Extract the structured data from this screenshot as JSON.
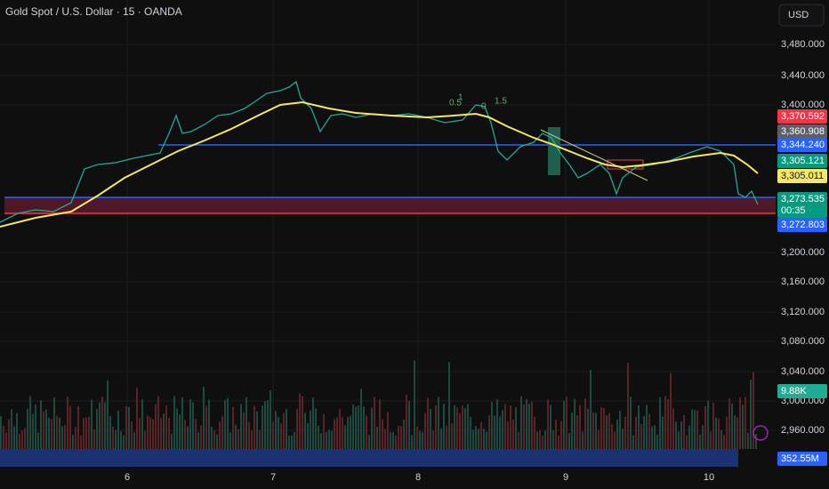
{
  "header": {
    "title": "Gold Spot / U.S. Dollar · 15 · OANDA",
    "currency": "USD"
  },
  "price_axis": [
    "3,480.000",
    "3,440.000",
    "3,400.000",
    "3,200.000",
    "3,160.000",
    "3,120.000",
    "3,080.000",
    "3,040.000",
    "3,000.000",
    "2,960.000"
  ],
  "price_tags": {
    "high_line": "3,370.592",
    "crosshair": "3,360.908",
    "resistance": "3,344.240",
    "ma_price": "3,305.121",
    "ma_value": "3,305.011",
    "last_price": "3,273.535",
    "countdown": "00:35",
    "support": "3,272.803",
    "volume": "9.88K",
    "volume_ma": "352.55M"
  },
  "time_axis": [
    "6",
    "7",
    "8",
    "9",
    "10"
  ],
  "fib_labels": [
    "0.5",
    "1",
    "0",
    "1.5"
  ]
}
